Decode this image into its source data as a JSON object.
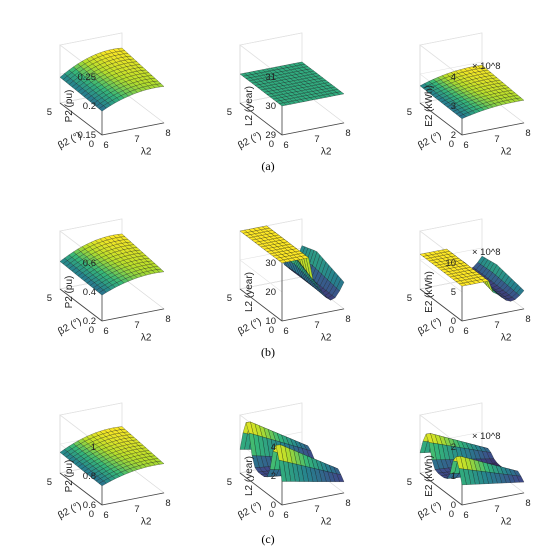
{
  "captions": [
    "(a)",
    "(b)",
    "(c)"
  ],
  "colormap": [
    "#30123b",
    "#3e4a89",
    "#26828e",
    "#35b779",
    "#b5de2b",
    "#fde725"
  ],
  "mesh_color": "#111111",
  "chart_data": [
    {
      "type": "surface",
      "row": 0,
      "col": 0,
      "surface": "saddle_smooth",
      "zlabel": "P2 (pu)",
      "xlabel": "λ2",
      "ylabel": "β2 (°)",
      "xlim": [
        6,
        8
      ],
      "ylim": [
        0,
        5
      ],
      "zlim": [
        0.15,
        0.25
      ],
      "xticks": [
        "6",
        "7",
        "8"
      ],
      "yticks": [
        "0",
        "5"
      ],
      "zticks": [
        "0.15",
        "0.2",
        "0.25"
      ],
      "exponent": "",
      "zrange": [
        0.175,
        0.225
      ]
    },
    {
      "type": "surface",
      "row": 0,
      "col": 1,
      "surface": "flat",
      "zlabel": "L2 (year)",
      "xlabel": "λ2",
      "ylabel": "β2 (°)",
      "xlim": [
        6,
        8
      ],
      "ylim": [
        0,
        5
      ],
      "zlim": [
        29,
        31
      ],
      "xticks": [
        "6",
        "7",
        "8"
      ],
      "yticks": [
        "0",
        "5"
      ],
      "zticks": [
        "29",
        "30",
        "31"
      ],
      "exponent": "",
      "zrange": [
        30,
        30
      ]
    },
    {
      "type": "surface",
      "row": 0,
      "col": 2,
      "surface": "saddle_smooth",
      "zlabel": "E2 (kWh)",
      "xlabel": "λ2",
      "ylabel": "β2 (°)",
      "xlim": [
        6,
        8
      ],
      "ylim": [
        0,
        5
      ],
      "zlim": [
        2,
        4
      ],
      "xticks": [
        "6",
        "7",
        "8"
      ],
      "yticks": [
        "0",
        "5"
      ],
      "zticks": [
        "2",
        "3",
        "4"
      ],
      "exponent": "× 10^8",
      "zrange": [
        2.4,
        2.9
      ]
    },
    {
      "type": "surface",
      "row": 1,
      "col": 0,
      "surface": "saddle_smooth",
      "zlabel": "P2 (pu)",
      "xlabel": "λ2",
      "ylabel": "β2 (°)",
      "xlim": [
        6,
        8
      ],
      "ylim": [
        0,
        5
      ],
      "zlim": [
        0.2,
        0.6
      ],
      "xticks": [
        "6",
        "7",
        "8"
      ],
      "yticks": [
        "0",
        "5"
      ],
      "zticks": [
        "0.2",
        "0.4",
        "0.6"
      ],
      "exponent": "",
      "zrange": [
        0.32,
        0.5
      ]
    },
    {
      "type": "surface",
      "row": 1,
      "col": 1,
      "surface": "plateau_dip",
      "zlabel": "L2 (year)",
      "xlabel": "λ2",
      "ylabel": "β2 (°)",
      "xlim": [
        6,
        8
      ],
      "ylim": [
        0,
        5
      ],
      "zlim": [
        10,
        30
      ],
      "xticks": [
        "6",
        "7",
        "8"
      ],
      "yticks": [
        "0",
        "5"
      ],
      "zticks": [
        "10",
        "20",
        "30"
      ],
      "exponent": "",
      "zrange": [
        11,
        30
      ]
    },
    {
      "type": "surface",
      "row": 1,
      "col": 2,
      "surface": "plateau_dip",
      "zlabel": "E2 (kWh)",
      "xlabel": "λ2",
      "ylabel": "β2 (°)",
      "xlim": [
        6,
        8
      ],
      "ylim": [
        0,
        5
      ],
      "zlim": [
        0,
        10
      ],
      "xticks": [
        "6",
        "7",
        "8"
      ],
      "yticks": [
        "0",
        "5"
      ],
      "zticks": [
        "0",
        "5",
        "10"
      ],
      "exponent": "× 10^8",
      "zrange": [
        1,
        6
      ]
    },
    {
      "type": "surface",
      "row": 2,
      "col": 0,
      "surface": "saddle_smooth",
      "zlabel": "P2 (pu)",
      "xlabel": "λ2",
      "ylabel": "β2 (°)",
      "xlim": [
        6,
        8
      ],
      "ylim": [
        0,
        5
      ],
      "zlim": [
        0.6,
        1
      ],
      "xticks": [
        "6",
        "7",
        "8"
      ],
      "yticks": [
        "0",
        "5"
      ],
      "zticks": [
        "0.6",
        "0.8",
        "1"
      ],
      "exponent": "",
      "zrange": [
        0.68,
        0.84
      ]
    },
    {
      "type": "surface",
      "row": 2,
      "col": 1,
      "surface": "double_ridge",
      "zlabel": "L2 (year)",
      "xlabel": "λ2",
      "ylabel": "β2 (°)",
      "xlim": [
        6,
        8
      ],
      "ylim": [
        0,
        5
      ],
      "zlim": [
        0,
        4
      ],
      "xticks": [
        "6",
        "7",
        "8"
      ],
      "yticks": [
        "0",
        "5"
      ],
      "zticks": [
        "0",
        "2",
        "4"
      ],
      "exponent": "",
      "zrange": [
        0.3,
        3.8
      ]
    },
    {
      "type": "surface",
      "row": 2,
      "col": 2,
      "surface": "double_ridge",
      "zlabel": "E2 (kWh)",
      "xlabel": "λ2",
      "ylabel": "β2 (°)",
      "xlim": [
        6,
        8
      ],
      "ylim": [
        0,
        5
      ],
      "zlim": [
        0,
        2
      ],
      "xticks": [
        "6",
        "7",
        "8"
      ],
      "yticks": [
        "0",
        "5"
      ],
      "zticks": [
        "0",
        "1",
        "2"
      ],
      "exponent": "× 10^8",
      "zrange": [
        0.2,
        1.5
      ]
    }
  ]
}
